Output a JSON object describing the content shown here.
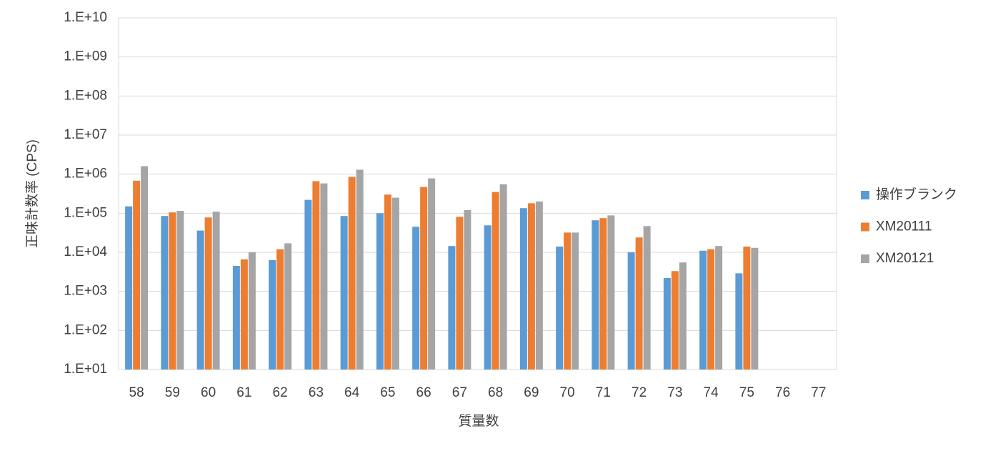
{
  "chart_data": {
    "type": "bar",
    "y_label": "正味計数率 (CPS)",
    "x_label": "質量数",
    "log_y": true,
    "grid": true,
    "legend_position": "right",
    "categories": [
      "58",
      "59",
      "60",
      "61",
      "62",
      "63",
      "64",
      "65",
      "66",
      "67",
      "68",
      "69",
      "70",
      "71",
      "72",
      "73",
      "74",
      "75",
      "76",
      "77"
    ],
    "series": [
      {
        "name": "操作ブランク",
        "color": "#5b9bd5",
        "values": [
          150000,
          85000,
          36000,
          4500,
          6300,
          220000,
          85000,
          100000,
          45000,
          14500,
          49000,
          135000,
          14000,
          66000,
          10000,
          2200,
          11000,
          2900,
          null,
          null
        ]
      },
      {
        "name": "XM20111",
        "color": "#ed7d31",
        "values": [
          680000,
          105000,
          78000,
          6600,
          12000,
          660000,
          850000,
          300000,
          470000,
          81000,
          350000,
          180000,
          32000,
          75000,
          24000,
          3300,
          12000,
          14000,
          null,
          null
        ]
      },
      {
        "name": "XM20121",
        "color": "#a5a5a5",
        "values": [
          1600000,
          115000,
          110000,
          10000,
          17000,
          580000,
          1300000,
          250000,
          780000,
          120000,
          550000,
          200000,
          32000,
          88000,
          47000,
          5500,
          14500,
          13000,
          null,
          null
        ]
      }
    ],
    "ylim": [
      10,
      10000000000
    ],
    "yticks": [
      {
        "value": 10,
        "label": "1.E+01"
      },
      {
        "value": 100,
        "label": "1.E+02"
      },
      {
        "value": 1000,
        "label": "1.E+03"
      },
      {
        "value": 10000,
        "label": "1.E+04"
      },
      {
        "value": 100000,
        "label": "1.E+05"
      },
      {
        "value": 1000000,
        "label": "1.E+06"
      },
      {
        "value": 10000000,
        "label": "1.E+07"
      },
      {
        "value": 100000000,
        "label": "1.E+08"
      },
      {
        "value": 1000000000,
        "label": "1.E+09"
      },
      {
        "value": 10000000000,
        "label": "1.E+10"
      }
    ]
  }
}
